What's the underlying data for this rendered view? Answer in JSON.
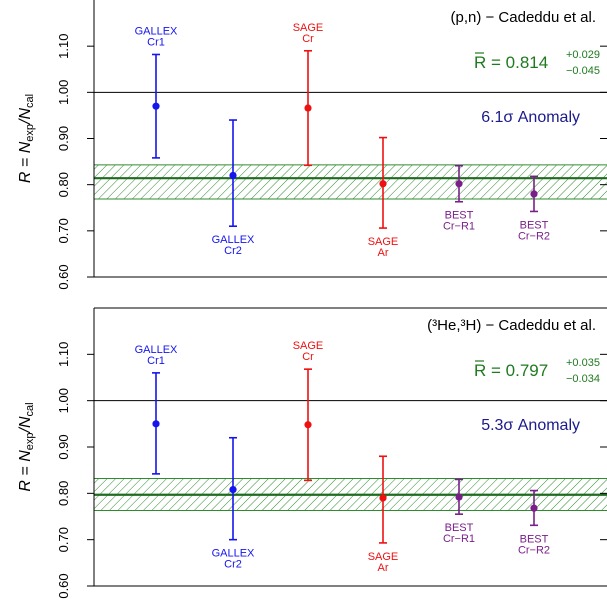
{
  "chart_data": [
    {
      "type": "scatter",
      "ylabel": "R = N_exp/N_cal",
      "ylim": [
        0.6,
        1.2
      ],
      "yticks": [
        "0.60",
        "0.70",
        "0.80",
        "0.90",
        "1.00",
        "1.10"
      ],
      "grid": false,
      "header": "(p,n) − Cadeddu et al.",
      "average": {
        "value": 0.814,
        "err_plus": 0.029,
        "err_minus": 0.045,
        "label_main": "R = 0.814",
        "label_sup": "+0.029",
        "label_sub": "−0.045",
        "color": "#1f7a1f"
      },
      "anomaly_label": "6.1σ Anomaly",
      "reference_line": 1.0,
      "points": [
        {
          "experiment": "GALLEX",
          "source": "Cr1",
          "y": 0.97,
          "lo": 0.858,
          "hi": 1.082,
          "color": "#1515ee",
          "label_pos": "above"
        },
        {
          "experiment": "GALLEX",
          "source": "Cr2",
          "y": 0.82,
          "lo": 0.71,
          "hi": 0.94,
          "color": "#1515ee",
          "label_pos": "below"
        },
        {
          "experiment": "SAGE",
          "source": "Cr",
          "y": 0.966,
          "lo": 0.842,
          "hi": 1.09,
          "color": "#ee1111",
          "label_pos": "above"
        },
        {
          "experiment": "SAGE",
          "source": "Ar",
          "y": 0.802,
          "lo": 0.706,
          "hi": 0.902,
          "color": "#ee1111",
          "label_pos": "below"
        },
        {
          "experiment": "BEST",
          "source": "Cr−R1",
          "y": 0.802,
          "lo": 0.763,
          "hi": 0.841,
          "color": "#7a1f8a",
          "label_pos": "below"
        },
        {
          "experiment": "BEST",
          "source": "Cr−R2",
          "y": 0.78,
          "lo": 0.742,
          "hi": 0.818,
          "color": "#7a1f8a",
          "label_pos": "below"
        }
      ]
    },
    {
      "type": "scatter",
      "ylabel": "R = N_exp/N_cal",
      "ylim": [
        0.6,
        1.2
      ],
      "yticks": [
        "0.60",
        "0.70",
        "0.80",
        "0.90",
        "1.00",
        "1.10"
      ],
      "grid": false,
      "header": "(³He,³H) − Cadeddu et al.",
      "average": {
        "value": 0.797,
        "err_plus": 0.035,
        "err_minus": 0.034,
        "label_main": "R = 0.797",
        "label_sup": "+0.035",
        "label_sub": "−0.034",
        "color": "#1f7a1f"
      },
      "anomaly_label": "5.3σ Anomaly",
      "reference_line": 1.0,
      "points": [
        {
          "experiment": "GALLEX",
          "source": "Cr1",
          "y": 0.95,
          "lo": 0.842,
          "hi": 1.06,
          "color": "#1515ee",
          "label_pos": "above"
        },
        {
          "experiment": "GALLEX",
          "source": "Cr2",
          "y": 0.808,
          "lo": 0.7,
          "hi": 0.92,
          "color": "#1515ee",
          "label_pos": "below"
        },
        {
          "experiment": "SAGE",
          "source": "Cr",
          "y": 0.948,
          "lo": 0.828,
          "hi": 1.068,
          "color": "#ee1111",
          "label_pos": "above"
        },
        {
          "experiment": "SAGE",
          "source": "Ar",
          "y": 0.79,
          "lo": 0.693,
          "hi": 0.88,
          "color": "#ee1111",
          "label_pos": "below"
        },
        {
          "experiment": "BEST",
          "source": "Cr−R1",
          "y": 0.792,
          "lo": 0.755,
          "hi": 0.83,
          "color": "#7a1f8a",
          "label_pos": "below"
        },
        {
          "experiment": "BEST",
          "source": "Cr−R2",
          "y": 0.768,
          "lo": 0.731,
          "hi": 0.806,
          "color": "#7a1f8a",
          "label_pos": "below"
        }
      ]
    }
  ]
}
